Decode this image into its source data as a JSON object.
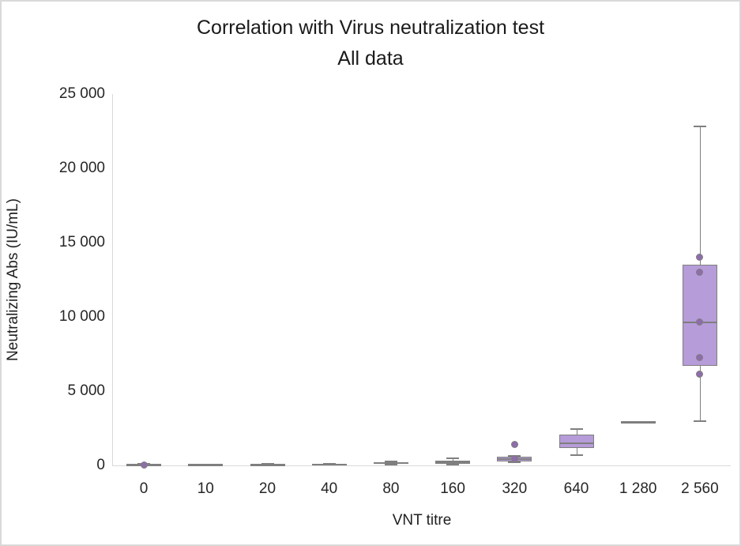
{
  "chart_data": {
    "type": "boxplot",
    "title": "Correlation with Virus neutralization test",
    "subtitle": "All data",
    "xlabel": "VNT titre",
    "ylabel": "Neutralizing Abs (IU/mL)",
    "ylim": [
      0,
      25000
    ],
    "yticks": [
      {
        "value": 0,
        "label": "0"
      },
      {
        "value": 5000,
        "label": "5 000"
      },
      {
        "value": 10000,
        "label": "10 000"
      },
      {
        "value": 15000,
        "label": "15 000"
      },
      {
        "value": 20000,
        "label": "20 000"
      },
      {
        "value": 25000,
        "label": "25 000"
      }
    ],
    "categories": [
      "0",
      "10",
      "20",
      "40",
      "80",
      "160",
      "320",
      "640",
      "1 280",
      "2 560"
    ],
    "grid": false,
    "legend": null,
    "boxes": [
      {
        "category": "0",
        "min": 0,
        "q1": 10,
        "median": 30,
        "q3": 60,
        "max": 90,
        "points": [
          50
        ]
      },
      {
        "category": "10",
        "min": 10,
        "q1": 20,
        "median": 30,
        "q3": 40,
        "max": 50,
        "points": []
      },
      {
        "category": "20",
        "min": 30,
        "q1": 45,
        "median": 55,
        "q3": 70,
        "max": 85,
        "points": []
      },
      {
        "category": "40",
        "min": 40,
        "q1": 55,
        "median": 70,
        "q3": 85,
        "max": 100,
        "points": []
      },
      {
        "category": "80",
        "min": 40,
        "q1": 80,
        "median": 140,
        "q3": 210,
        "max": 260,
        "points": []
      },
      {
        "category": "160",
        "min": 30,
        "q1": 80,
        "median": 200,
        "q3": 320,
        "max": 480,
        "points": []
      },
      {
        "category": "320",
        "min": 230,
        "q1": 270,
        "median": 430,
        "q3": 590,
        "max": 650,
        "points": [
          430,
          1400
        ]
      },
      {
        "category": "640",
        "min": 700,
        "q1": 1150,
        "median": 1500,
        "q3": 2050,
        "max": 2450,
        "points": []
      },
      {
        "category": "1 280",
        "min": 2950,
        "q1": 2950,
        "median": 2950,
        "q3": 2950,
        "max": 2950,
        "points": []
      },
      {
        "category": "2 560",
        "min": 3000,
        "q1": 6700,
        "median": 9650,
        "q3": 13500,
        "max": 22800,
        "points": [
          14000,
          13000,
          9650,
          7250,
          6150
        ]
      }
    ],
    "colors": {
      "box_fill": "#b69cd9",
      "box_border": "#7f7f7f",
      "whisker": "#7f7f7f",
      "point_fill": "#8f6cab",
      "point_border": "#7f7f7f",
      "axis_line": "#d9d9d9",
      "text": "#262626"
    }
  }
}
